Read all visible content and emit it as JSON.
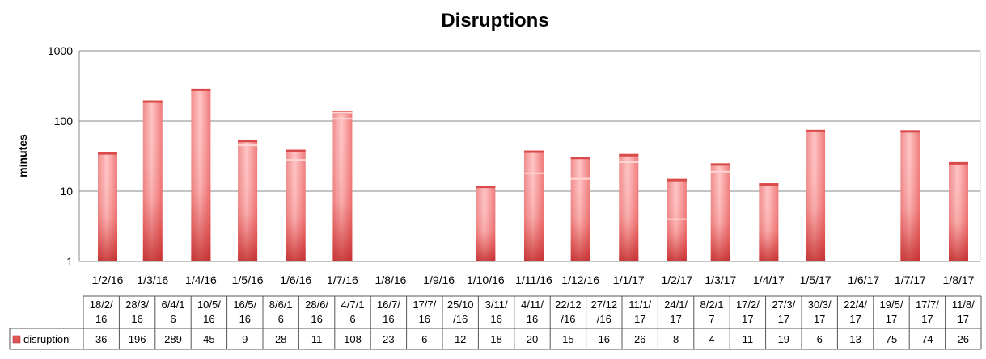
{
  "chart_data": {
    "type": "bar",
    "title": "Disruptions",
    "ylabel": "minutes",
    "xlabel": "",
    "yscale": "log",
    "ylim": [
      1,
      1000
    ],
    "yticks": [
      "1",
      "10",
      "100",
      "1000"
    ],
    "grid": true,
    "x_ticks": [
      "1/2/16",
      "1/3/16",
      "1/4/16",
      "1/5/16",
      "1/6/16",
      "1/7/16",
      "1/8/16",
      "1/9/16",
      "1/10/16",
      "1/11/16",
      "1/12/16",
      "1/1/17",
      "1/2/17",
      "1/3/17",
      "1/4/17",
      "1/5/17",
      "1/6/17",
      "1/7/17",
      "1/8/17"
    ],
    "categories": [
      "18/2/16",
      "28/3/16",
      "6/4/16",
      "10/5/16",
      "16/5/16",
      "8/6/16",
      "28/6/16",
      "4/7/16",
      "16/7/16",
      "17/7/16",
      "25/10/16",
      "3/11/16",
      "4/11/16",
      "22/12/16",
      "27/12/16",
      "11/1/17",
      "24/1/17",
      "8/2/17",
      "17/2/17",
      "27/3/17",
      "30/3/17",
      "22/4/17",
      "19/5/17",
      "17/7/17",
      "11/8/17"
    ],
    "category_cells": [
      "18/2/\n16",
      "28/3/\n16",
      "6/4/1\n6",
      "10/5/\n16",
      "16/5/\n16",
      "8/6/1\n6",
      "28/6/\n16",
      "4/7/1\n6",
      "16/7/\n16",
      "17/7/\n16",
      "25/10\n/16",
      "3/11/\n16",
      "4/11/\n16",
      "22/12\n/16",
      "27/12\n/16",
      "11/1/\n17",
      "24/1/\n17",
      "8/2/1\n7",
      "17/2/\n17",
      "27/3/\n17",
      "30/3/\n17",
      "22/4/\n17",
      "19/5/\n17",
      "17/7/\n17",
      "11/8/\n17"
    ],
    "series": [
      {
        "name": "disruption",
        "color": "#e05555",
        "values": [
          36,
          196,
          289,
          45,
          9,
          28,
          11,
          108,
          23,
          6,
          12,
          18,
          20,
          15,
          16,
          26,
          8,
          4,
          11,
          19,
          6,
          13,
          75,
          74,
          26
        ]
      }
    ]
  }
}
